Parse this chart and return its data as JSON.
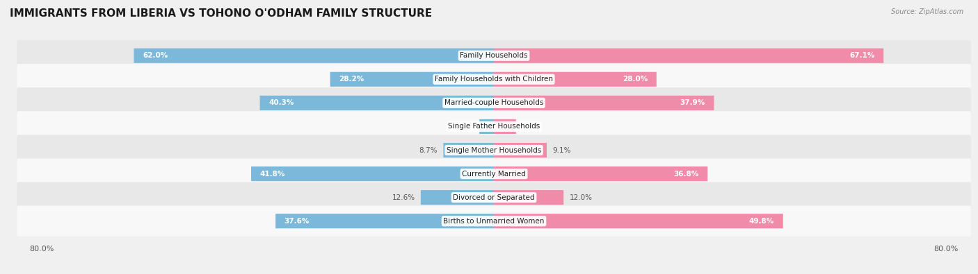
{
  "title": "IMMIGRANTS FROM LIBERIA VS TOHONO O'ODHAM FAMILY STRUCTURE",
  "source": "Source: ZipAtlas.com",
  "categories": [
    "Family Households",
    "Family Households with Children",
    "Married-couple Households",
    "Single Father Households",
    "Single Mother Households",
    "Currently Married",
    "Divorced or Separated",
    "Births to Unmarried Women"
  ],
  "liberia_values": [
    62.0,
    28.2,
    40.3,
    2.5,
    8.7,
    41.8,
    12.6,
    37.6
  ],
  "tohono_values": [
    67.1,
    28.0,
    37.9,
    3.8,
    9.1,
    36.8,
    12.0,
    49.8
  ],
  "liberia_color": "#7bb8d9",
  "tohono_color": "#f08baa",
  "liberia_label": "Immigrants from Liberia",
  "tohono_label": "Tohono O'odham",
  "x_max": 80.0,
  "background_color": "#f0f0f0",
  "row_colors": [
    "#e8e8e8",
    "#f8f8f8"
  ],
  "label_fontsize": 7.5,
  "category_fontsize": 7.5,
  "title_fontsize": 11,
  "axis_label_fontsize": 8,
  "large_threshold": 20
}
